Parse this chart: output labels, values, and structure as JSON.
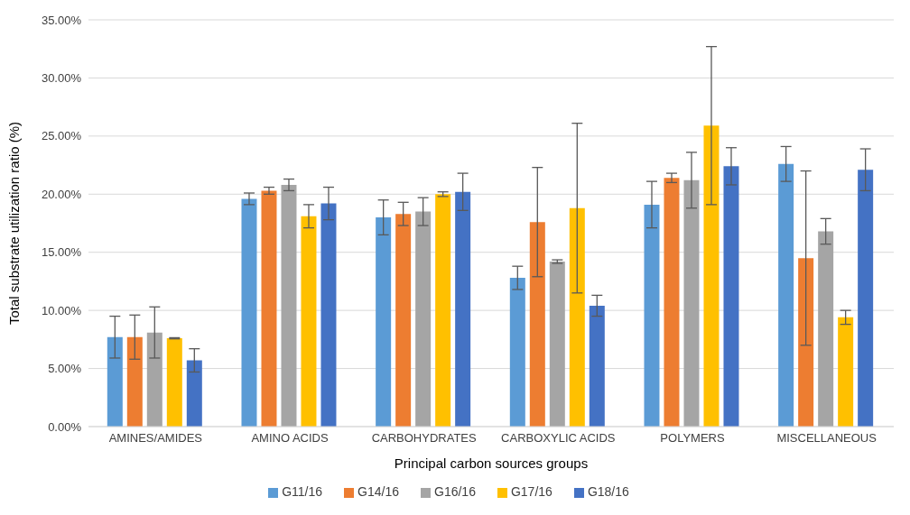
{
  "chart_data": {
    "type": "bar",
    "xlabel": "Principal carbon sources groups",
    "ylabel": "Total substrate utilization ratio (%)",
    "categories": [
      "AMINES/AMIDES",
      "AMINO ACIDS",
      "CARBOHYDRATES",
      "CARBOXYLIC ACIDS",
      "POLYMERS",
      "MISCELLANEOUS"
    ],
    "series": [
      {
        "name": "G11/16",
        "color": "#5b9bd5",
        "values": [
          7.7,
          19.6,
          18.0,
          12.8,
          19.1,
          22.6
        ],
        "errors": [
          1.8,
          0.5,
          1.5,
          1.0,
          2.0,
          1.5
        ]
      },
      {
        "name": "G14/16",
        "color": "#ed7d31",
        "values": [
          7.7,
          20.3,
          18.3,
          17.6,
          21.4,
          14.5
        ],
        "errors": [
          1.9,
          0.3,
          1.0,
          4.7,
          0.4,
          7.5
        ]
      },
      {
        "name": "G16/16",
        "color": "#a5a5a5",
        "values": [
          8.1,
          20.8,
          18.5,
          14.2,
          21.2,
          16.8
        ],
        "errors": [
          2.2,
          0.5,
          1.2,
          0.15,
          2.4,
          1.1
        ]
      },
      {
        "name": "G17/16",
        "color": "#ffc000",
        "values": [
          7.6,
          18.1,
          20.0,
          18.8,
          25.9,
          9.4
        ],
        "errors": [
          0.05,
          1.0,
          0.2,
          7.3,
          6.8,
          0.6
        ]
      },
      {
        "name": "G18/16",
        "color": "#4472c4",
        "values": [
          5.7,
          19.2,
          20.2,
          10.4,
          22.4,
          22.1
        ],
        "errors": [
          1.0,
          1.4,
          1.6,
          0.9,
          1.6,
          1.8
        ]
      }
    ],
    "ylim": [
      0,
      35
    ],
    "yticks": [
      {
        "value": 0,
        "label": "0.00%"
      },
      {
        "value": 5,
        "label": "5.00%"
      },
      {
        "value": 10,
        "label": "10.00%"
      },
      {
        "value": 15,
        "label": "15.00%"
      },
      {
        "value": 20,
        "label": "20.00%"
      },
      {
        "value": 25,
        "label": "25.00%"
      },
      {
        "value": 30,
        "label": "30.00%"
      },
      {
        "value": 35,
        "label": "35.00%"
      }
    ],
    "grid": "y",
    "legend": "bottom"
  }
}
